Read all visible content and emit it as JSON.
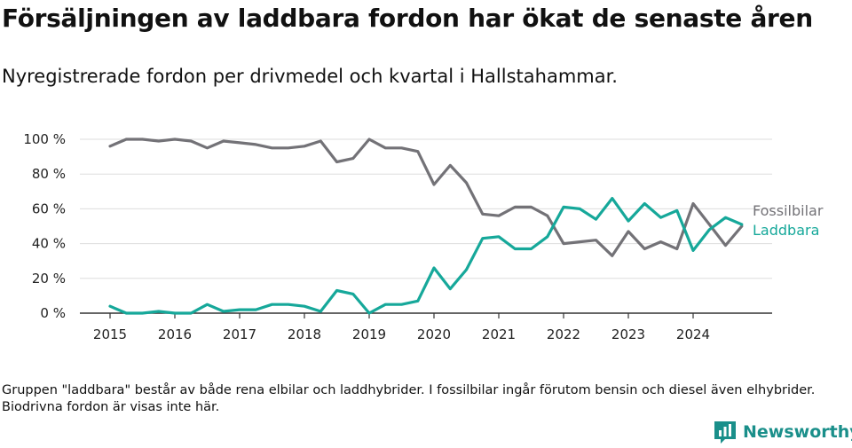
{
  "header": {
    "title": "Försäljningen av laddbara fordon har ökat de senaste åren",
    "subtitle": "Nyregistrerade fordon per drivmedel och kvartal i Hallstahammar."
  },
  "footer": {
    "note": "Gruppen \"laddbara\" består av både rena elbilar och laddhybrider. I fossilbilar ingår förutom bensin och diesel även elhybrider. Biodrivna fordon är visas inte här.",
    "brand": "Newsworthy"
  },
  "colors": {
    "fossil": "#737277",
    "laddbara": "#16a89a",
    "grid": "#dddddd",
    "axis": "#333333",
    "brand": "#1a8f8a"
  },
  "chart_data": {
    "type": "line",
    "title": "Försäljningen av laddbara fordon har ökat de senaste åren",
    "subtitle": "Nyregistrerade fordon per drivmedel och kvartal i Hallstahammar.",
    "x_ticks": [
      "2015",
      "2016",
      "2017",
      "2018",
      "2019",
      "2020",
      "2021",
      "2022",
      "2023",
      "2024"
    ],
    "y_ticks": [
      "0 %",
      "20 %",
      "40 %",
      "60 %",
      "80 %",
      "100 %"
    ],
    "ylim": [
      0,
      100
    ],
    "grid": true,
    "x": [
      "2015 Q1",
      "2015 Q2",
      "2015 Q3",
      "2015 Q4",
      "2016 Q1",
      "2016 Q2",
      "2016 Q3",
      "2016 Q4",
      "2017 Q1",
      "2017 Q2",
      "2017 Q3",
      "2017 Q4",
      "2018 Q1",
      "2018 Q2",
      "2018 Q3",
      "2018 Q4",
      "2019 Q1",
      "2019 Q2",
      "2019 Q3",
      "2019 Q4",
      "2020 Q1",
      "2020 Q2",
      "2020 Q3",
      "2020 Q4",
      "2021 Q1",
      "2021 Q2",
      "2021 Q3",
      "2021 Q4",
      "2022 Q1",
      "2022 Q2",
      "2022 Q3",
      "2022 Q4",
      "2023 Q1",
      "2023 Q2",
      "2023 Q3",
      "2023 Q4",
      "2024 Q1",
      "2024 Q2",
      "2024 Q3",
      "2024 Q4"
    ],
    "series": [
      {
        "name": "Fossilbilar",
        "values": [
          96,
          100,
          100,
          99,
          100,
          99,
          95,
          99,
          98,
          97,
          95,
          95,
          96,
          99,
          87,
          89,
          100,
          95,
          95,
          93,
          74,
          85,
          75,
          57,
          56,
          61,
          61,
          56,
          40,
          41,
          42,
          33,
          47,
          37,
          41,
          37,
          63,
          51,
          39,
          50
        ]
      },
      {
        "name": "Laddbara",
        "values": [
          4,
          0,
          0,
          1,
          0,
          0,
          5,
          1,
          2,
          2,
          5,
          5,
          4,
          1,
          13,
          11,
          0,
          5,
          5,
          7,
          26,
          14,
          25,
          43,
          44,
          37,
          37,
          44,
          61,
          60,
          54,
          66,
          53,
          63,
          55,
          59,
          36,
          48,
          55,
          51
        ]
      }
    ]
  }
}
